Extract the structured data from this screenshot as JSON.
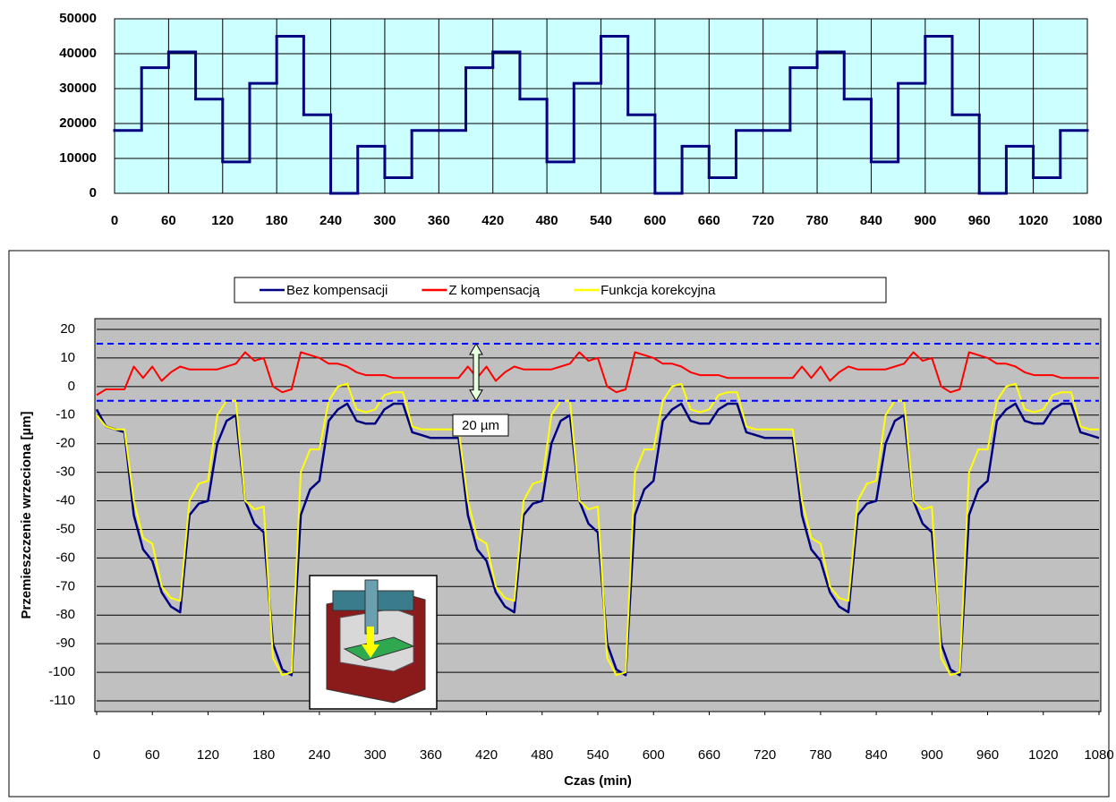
{
  "chart_data": [
    {
      "type": "step",
      "x": [
        0,
        30,
        60,
        90,
        120,
        150,
        180,
        210,
        240,
        270,
        300,
        330,
        360,
        390,
        420,
        450,
        480,
        510,
        540,
        570,
        600,
        630,
        660,
        690,
        720,
        750,
        780,
        810,
        840,
        870,
        900,
        930,
        960,
        990,
        1020,
        1050
      ],
      "values": [
        18000,
        36000,
        40500,
        27000,
        9000,
        31500,
        45000,
        22500,
        0,
        13500,
        4500,
        18000,
        18000,
        36000,
        40500,
        27000,
        9000,
        31500,
        45000,
        22500,
        0,
        13500,
        4500,
        18000,
        18000,
        36000,
        40500,
        27000,
        9000,
        31500,
        45000,
        22500,
        0,
        13500,
        4500,
        18000
      ],
      "color": "#000080",
      "background": "#ccffff",
      "xlim": [
        0,
        1080
      ],
      "xticks": [
        0,
        60,
        120,
        180,
        240,
        300,
        360,
        420,
        480,
        540,
        600,
        660,
        720,
        780,
        840,
        900,
        960,
        1020,
        1080
      ],
      "ylim": [
        0,
        50000
      ],
      "yticks": [
        0,
        10000,
        20000,
        30000,
        40000,
        50000
      ],
      "grid": true
    },
    {
      "type": "line",
      "xlabel": "Czas (min)",
      "ylabel": "Przemieszczenie wrzeciona [µm]",
      "x": [
        0,
        10,
        20,
        30,
        40,
        50,
        60,
        70,
        80,
        90,
        100,
        110,
        120,
        130,
        140,
        150,
        160,
        170,
        180,
        190,
        200,
        210,
        220,
        230,
        240,
        250,
        260,
        270,
        280,
        290,
        300,
        310,
        320,
        330,
        340,
        350,
        360,
        370,
        380,
        390,
        400,
        410,
        420,
        430,
        440,
        450,
        460,
        470,
        480,
        490,
        500,
        510,
        520,
        530,
        540,
        550,
        560,
        570,
        580,
        590,
        600,
        610,
        620,
        630,
        640,
        650,
        660,
        670,
        680,
        690,
        700,
        710,
        720,
        730,
        740,
        750,
        760,
        770,
        780,
        790,
        800,
        810,
        820,
        830,
        840,
        850,
        860,
        870,
        880,
        890,
        900,
        910,
        920,
        930,
        940,
        950,
        960,
        970,
        980,
        990,
        1000,
        1010,
        1020,
        1030,
        1040,
        1050,
        1060,
        1070,
        1080
      ],
      "series": [
        {
          "name": "Bez kompensacji",
          "color": "#000080",
          "values": [
            -8,
            -14,
            -15,
            -16,
            -45,
            -57,
            -61,
            -72,
            -77,
            -79,
            -45,
            -41,
            -40,
            -20,
            -12,
            -10,
            -40,
            -48,
            -51,
            -90,
            -99,
            -101,
            -45,
            -36,
            -33,
            -12,
            -8,
            -6,
            -12,
            -13,
            -13,
            -8,
            -6,
            -6,
            -16,
            -17,
            -18,
            -18,
            -18,
            -18,
            -45,
            -57,
            -61,
            -72,
            -77,
            -79,
            -45,
            -41,
            -40,
            -20,
            -12,
            -10,
            -40,
            -48,
            -51,
            -90,
            -99,
            -101,
            -45,
            -36,
            -33,
            -12,
            -8,
            -6,
            -12,
            -13,
            -13,
            -8,
            -6,
            -6,
            -16,
            -17,
            -18,
            -18,
            -18,
            -18,
            -45,
            -57,
            -61,
            -72,
            -77,
            -79,
            -45,
            -41,
            -40,
            -20,
            -12,
            -10,
            -40,
            -48,
            -51,
            -90,
            -99,
            -101,
            -45,
            -36,
            -33,
            -12,
            -8,
            -6,
            -12,
            -13,
            -13,
            -8,
            -6,
            -6,
            -16,
            -17,
            -18
          ]
        },
        {
          "name": "Z kompensacją",
          "color": "#ff0000",
          "values": [
            -3,
            -1,
            -1,
            -1,
            7,
            3,
            7,
            2,
            5,
            7,
            6,
            6,
            6,
            6,
            7,
            8,
            12,
            9,
            10,
            0,
            -2,
            -1,
            12,
            11,
            10,
            8,
            8,
            7,
            5,
            4,
            4,
            4,
            3,
            3,
            3,
            3,
            3,
            3,
            3,
            3,
            7,
            3,
            7,
            2,
            5,
            7,
            6,
            6,
            6,
            6,
            7,
            8,
            12,
            9,
            10,
            0,
            -2,
            -1,
            12,
            11,
            10,
            8,
            8,
            7,
            5,
            4,
            4,
            4,
            3,
            3,
            3,
            3,
            3,
            3,
            3,
            3,
            7,
            3,
            7,
            2,
            5,
            7,
            6,
            6,
            6,
            6,
            7,
            8,
            12,
            9,
            10,
            0,
            -2,
            -1,
            12,
            11,
            10,
            8,
            8,
            7,
            5,
            4,
            4,
            4,
            3,
            3,
            3,
            3,
            3
          ]
        },
        {
          "name": "Funkcja korekcyjna",
          "color": "#ffff00",
          "values": [
            -10,
            -14,
            -15,
            -15,
            -40,
            -53,
            -55,
            -70,
            -74,
            -75,
            -40,
            -34,
            -33,
            -10,
            -5,
            -5,
            -40,
            -43,
            -42,
            -95,
            -101,
            -100,
            -30,
            -22,
            -22,
            -5,
            0,
            1,
            -8,
            -9,
            -8,
            -3,
            -2,
            -2,
            -14,
            -15,
            -15,
            -15,
            -15,
            -15,
            -40,
            -53,
            -55,
            -70,
            -74,
            -75,
            -40,
            -34,
            -33,
            -10,
            -5,
            -5,
            -40,
            -43,
            -42,
            -95,
            -101,
            -100,
            -30,
            -22,
            -22,
            -5,
            0,
            1,
            -8,
            -9,
            -8,
            -3,
            -2,
            -2,
            -14,
            -15,
            -15,
            -15,
            -15,
            -15,
            -40,
            -53,
            -55,
            -70,
            -74,
            -75,
            -40,
            -34,
            -33,
            -10,
            -5,
            -5,
            -40,
            -43,
            -42,
            -95,
            -101,
            -100,
            -30,
            -22,
            -22,
            -5,
            0,
            1,
            -8,
            -9,
            -8,
            -3,
            -2,
            -2,
            -14,
            -15,
            -15
          ]
        }
      ],
      "hlines": [
        15,
        -5
      ],
      "annotation": "20 µm",
      "background": "#c0c0c0",
      "legend": "top",
      "xlim": [
        0,
        1080
      ],
      "xticks": [
        0,
        60,
        120,
        180,
        240,
        300,
        360,
        420,
        480,
        540,
        600,
        660,
        720,
        780,
        840,
        900,
        960,
        1020,
        1080
      ],
      "ylim": [
        -110,
        20
      ],
      "yticks": [
        -110,
        -100,
        -90,
        -80,
        -70,
        -60,
        -50,
        -40,
        -30,
        -20,
        -10,
        0,
        10,
        20
      ],
      "grid": true
    }
  ]
}
